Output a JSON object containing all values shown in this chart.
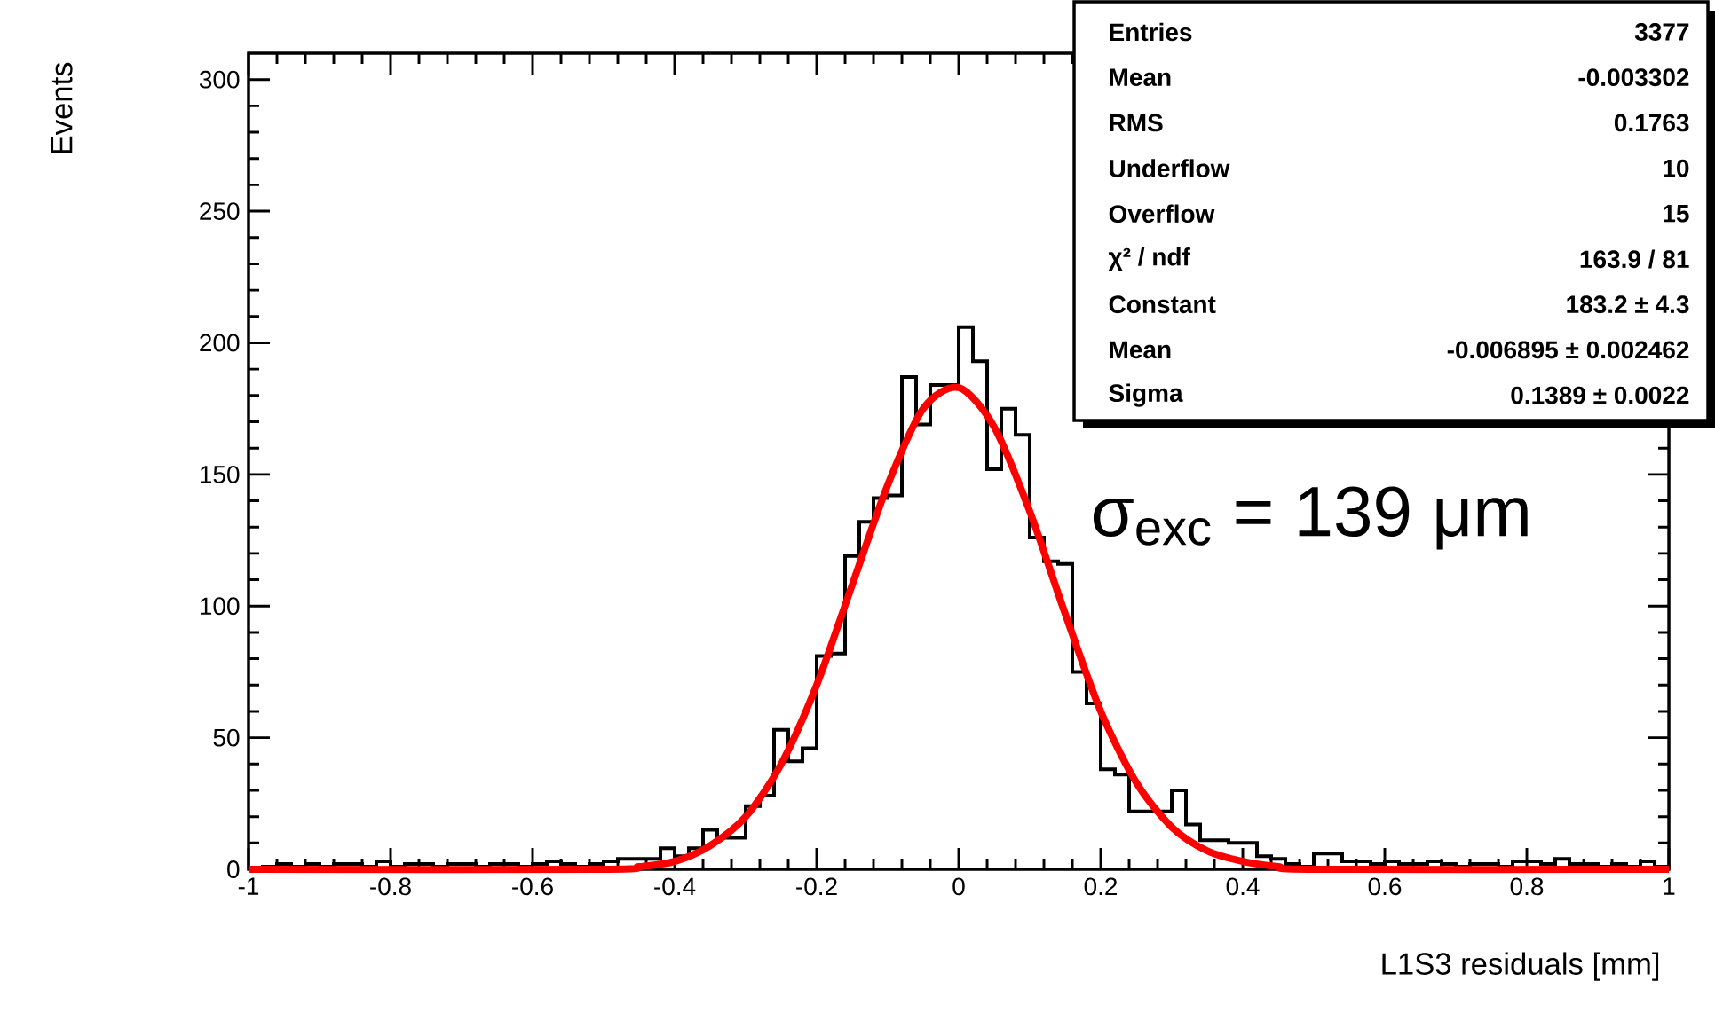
{
  "chart_data": {
    "type": "histogram",
    "xlabel": "L1S3 residuals [mm]",
    "ylabel": "Events",
    "bins": [
      -1,
      -0.98,
      -0.96,
      -0.94,
      -0.92,
      -0.9,
      -0.88,
      -0.86,
      -0.84,
      -0.82,
      -0.8,
      -0.78,
      -0.76,
      -0.74,
      -0.72,
      -0.7,
      -0.68,
      -0.66,
      -0.64,
      -0.62,
      -0.6,
      -0.58,
      -0.56,
      -0.54,
      -0.52,
      -0.5,
      -0.48,
      -0.46,
      -0.44,
      -0.42,
      -0.4,
      -0.38,
      -0.36,
      -0.34,
      -0.32,
      -0.3,
      -0.28,
      -0.26,
      -0.24,
      -0.22,
      -0.2,
      -0.18,
      -0.16,
      -0.14,
      -0.12,
      -0.1,
      -0.08,
      -0.06,
      -0.04,
      -0.02,
      0,
      0.02,
      0.04,
      0.06,
      0.08,
      0.1,
      0.12,
      0.14,
      0.16,
      0.18,
      0.2,
      0.22,
      0.24,
      0.26,
      0.28,
      0.3,
      0.32,
      0.34,
      0.36,
      0.38,
      0.4,
      0.42,
      0.44,
      0.46,
      0.48,
      0.5,
      0.52,
      0.54,
      0.56,
      0.58,
      0.6,
      0.62,
      0.64,
      0.66,
      0.68,
      0.7,
      0.72,
      0.74,
      0.76,
      0.78,
      0.8,
      0.82,
      0.84,
      0.86,
      0.88,
      0.9,
      0.92,
      0.94,
      0.96,
      0.98,
      1
    ],
    "series": [
      {
        "type": "histogram",
        "color": "#000000",
        "values": [
          0,
          1,
          2,
          1,
          2,
          1,
          2,
          2,
          1,
          3,
          1,
          2,
          2,
          1,
          2,
          2,
          1,
          2,
          2,
          1,
          2,
          3,
          2,
          1,
          2,
          3,
          4,
          4,
          4,
          8,
          5,
          8,
          15,
          12,
          12,
          24,
          28,
          53,
          41,
          46,
          81,
          82,
          119,
          132,
          141,
          142,
          187,
          169,
          184,
          184,
          206,
          193,
          152,
          175,
          165,
          126,
          117,
          116,
          75,
          63,
          38,
          36,
          22,
          22,
          22,
          30,
          17,
          11,
          11,
          10,
          10,
          5,
          4,
          2,
          1,
          6,
          6,
          3,
          3,
          2,
          3,
          2,
          2,
          3,
          2,
          1,
          2,
          2,
          1,
          3,
          3,
          2,
          4,
          2,
          2,
          1,
          2,
          1,
          3,
          1
        ]
      },
      {
        "type": "line",
        "color": "#ff0000",
        "x": [
          -1,
          -0.5,
          -0.45,
          -0.4,
          -0.35,
          -0.3,
          -0.25,
          -0.2,
          -0.15,
          -0.1,
          -0.05,
          0,
          0.05,
          0.1,
          0.15,
          0.2,
          0.25,
          0.3,
          0.35,
          0.4,
          0.45,
          0.5,
          1
        ],
        "values": [
          0,
          0,
          1,
          3,
          9,
          20,
          40,
          70,
          108,
          146,
          175,
          183,
          168,
          136,
          97,
          60,
          33,
          16,
          7,
          3,
          1,
          0,
          0
        ]
      }
    ],
    "xlim": [
      -1,
      1
    ],
    "ylim": [
      0,
      310
    ],
    "xticks": [
      -1,
      -0.8,
      -0.6,
      -0.4,
      -0.2,
      0,
      0.2,
      0.4,
      0.6,
      0.8,
      1
    ],
    "yticks": [
      0,
      50,
      100,
      150,
      200,
      250,
      300
    ],
    "annotations": [
      "Entries",
      "3377",
      "Mean",
      "-0.003302",
      "RMS",
      "0.1763",
      "Underflow",
      "10",
      "Overflow",
      "15",
      "χ² / ndf",
      "163.9 / 81",
      "Constant",
      "183.2 ± 4.3",
      "Mean",
      "-0.006895 ± 0.002462",
      "Sigma",
      "0.1389 ± 0.0022",
      "σ$_{exc}$ = 139 μm"
    ]
  }
}
